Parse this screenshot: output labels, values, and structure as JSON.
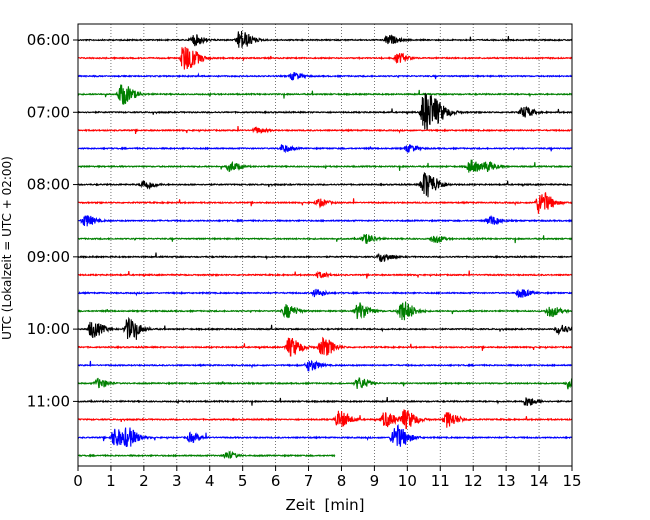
{
  "chart_data": {
    "type": "line",
    "title": "",
    "xlabel": "Zeit  [min]",
    "ylabel": "UTC (Lokalzeit = UTC + 02:00)",
    "xlim": [
      0,
      15
    ],
    "xticks": [
      "0",
      "1",
      "2",
      "3",
      "4",
      "5",
      "6",
      "7",
      "8",
      "9",
      "10",
      "11",
      "12",
      "13",
      "14",
      "15"
    ],
    "yticks": [
      "06:00",
      "07:00",
      "08:00",
      "09:00",
      "10:00",
      "11:00"
    ],
    "grid_x": "dotted",
    "trace_interval_min": 15,
    "trace_colors": [
      "#000000",
      "#ff0000",
      "#0000ff",
      "#008000"
    ],
    "traces": [
      {
        "time": "06:00",
        "color": "#000000",
        "end": 15,
        "events": [
          [
            3.5,
            0.6
          ],
          [
            4.9,
            1.0
          ],
          [
            9.4,
            0.5
          ]
        ]
      },
      {
        "time": "06:15",
        "color": "#ff0000",
        "end": 15,
        "events": [
          [
            3.2,
            1.4
          ],
          [
            9.7,
            0.5
          ]
        ]
      },
      {
        "time": "06:30",
        "color": "#0000ff",
        "end": 15,
        "events": [
          [
            6.5,
            0.4
          ]
        ]
      },
      {
        "time": "06:45",
        "color": "#008000",
        "end": 15,
        "events": [
          [
            1.3,
            1.1
          ]
        ]
      },
      {
        "time": "07:00",
        "color": "#000000",
        "end": 15,
        "events": [
          [
            10.5,
            2.2
          ],
          [
            13.5,
            0.6
          ]
        ]
      },
      {
        "time": "07:15",
        "color": "#ff0000",
        "end": 15,
        "events": [
          [
            5.4,
            0.3
          ]
        ]
      },
      {
        "time": "07:30",
        "color": "#0000ff",
        "end": 15,
        "events": [
          [
            6.2,
            0.4
          ],
          [
            10.0,
            0.4
          ]
        ]
      },
      {
        "time": "07:45",
        "color": "#008000",
        "end": 15,
        "events": [
          [
            4.6,
            0.5
          ],
          [
            11.9,
            0.7
          ],
          [
            12.4,
            0.5
          ]
        ]
      },
      {
        "time": "08:00",
        "color": "#000000",
        "end": 15,
        "events": [
          [
            2.0,
            0.5
          ],
          [
            10.5,
            1.4
          ]
        ]
      },
      {
        "time": "08:15",
        "color": "#ff0000",
        "end": 15,
        "events": [
          [
            7.3,
            0.4
          ],
          [
            14.0,
            1.2
          ]
        ]
      },
      {
        "time": "08:30",
        "color": "#0000ff",
        "end": 15,
        "events": [
          [
            0.2,
            0.6
          ],
          [
            12.5,
            0.5
          ]
        ]
      },
      {
        "time": "08:45",
        "color": "#008000",
        "end": 15,
        "events": [
          [
            8.7,
            0.5
          ],
          [
            10.8,
            0.4
          ]
        ]
      },
      {
        "time": "09:00",
        "color": "#000000",
        "end": 15,
        "events": [
          [
            9.2,
            0.5
          ]
        ]
      },
      {
        "time": "09:15",
        "color": "#ff0000",
        "end": 15,
        "events": [
          [
            7.3,
            0.3
          ]
        ]
      },
      {
        "time": "09:30",
        "color": "#0000ff",
        "end": 15,
        "events": [
          [
            7.2,
            0.4
          ],
          [
            13.4,
            0.5
          ]
        ]
      },
      {
        "time": "09:45",
        "color": "#008000",
        "end": 15,
        "events": [
          [
            6.3,
            0.7
          ],
          [
            8.5,
            0.9
          ],
          [
            9.8,
            1.1
          ],
          [
            14.3,
            0.6
          ]
        ]
      },
      {
        "time": "10:00",
        "color": "#000000",
        "end": 15,
        "events": [
          [
            0.4,
            0.9
          ],
          [
            1.5,
            1.1
          ],
          [
            14.6,
            0.5
          ]
        ]
      },
      {
        "time": "10:15",
        "color": "#ff0000",
        "end": 15,
        "events": [
          [
            6.4,
            1.0
          ],
          [
            7.4,
            1.0
          ]
        ]
      },
      {
        "time": "10:30",
        "color": "#0000ff",
        "end": 15,
        "events": [
          [
            7.0,
            0.6
          ]
        ]
      },
      {
        "time": "10:45",
        "color": "#008000",
        "end": 15,
        "events": [
          [
            0.6,
            0.5
          ],
          [
            8.5,
            0.6
          ],
          [
            14.9,
            0.5
          ]
        ]
      },
      {
        "time": "11:00",
        "color": "#000000",
        "end": 15,
        "events": [
          [
            13.6,
            0.5
          ]
        ]
      },
      {
        "time": "11:15",
        "color": "#ff0000",
        "end": 15,
        "events": [
          [
            7.9,
            0.9
          ],
          [
            9.3,
            0.8
          ],
          [
            9.9,
            1.0
          ],
          [
            11.2,
            0.8
          ]
        ]
      },
      {
        "time": "11:30",
        "color": "#0000ff",
        "end": 15,
        "events": [
          [
            1.1,
            1.0
          ],
          [
            1.5,
            0.8
          ],
          [
            9.6,
            1.3
          ],
          [
            3.4,
            0.5
          ]
        ]
      },
      {
        "time": "11:45",
        "color": "#008000",
        "end": 7.8,
        "events": [
          [
            4.5,
            0.4
          ]
        ]
      }
    ]
  }
}
